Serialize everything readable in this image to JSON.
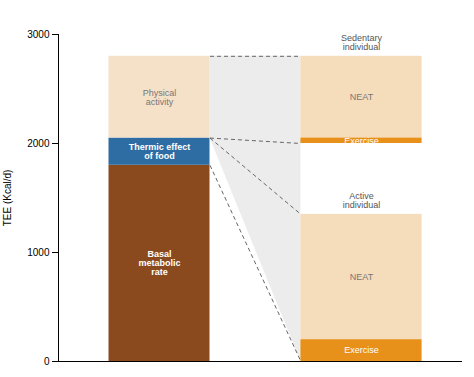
{
  "chart_data": {
    "type": "bar",
    "ylabel": "TEE (Kcal/d)",
    "ylim": [
      0,
      3000
    ],
    "yticks": [
      0,
      1000,
      2000,
      3000
    ],
    "tick_labels": "y",
    "categories": [
      null,
      null
    ],
    "bars": [
      {
        "groups": [
          {
            "segments": [
              {
                "name": "Basal\nmetabolic\nrate",
                "bottom": 0,
                "top": 1800,
                "color": "#8B4A1E"
              },
              {
                "name": "Thermic effect\nof food",
                "bottom": 1800,
                "top": 2050,
                "color": "#2E6DA4"
              },
              {
                "name": "Physical\nactivity",
                "bottom": 2050,
                "top": 2800,
                "color": "#F5E0C8"
              }
            ]
          }
        ]
      },
      {
        "groups": [
          {
            "title": "Sedentary\nindividual",
            "segments": [
              {
                "name": "NEAT",
                "bottom": 2050,
                "top": 2800,
                "color": "#F5DCBB"
              },
              {
                "name": "Exercise",
                "bottom": 2000,
                "top": 2050,
                "color": "#E8911A"
              }
            ]
          },
          {
            "title": "Active\nindividual",
            "segments": [
              {
                "name": "NEAT",
                "bottom": 200,
                "top": 1350,
                "color": "#F5DCBB"
              },
              {
                "name": "Exercise",
                "bottom": 0,
                "top": 200,
                "color": "#E8911A"
              }
            ]
          }
        ]
      }
    ],
    "shade": {
      "color": "#DCDCDC",
      "from": [
        2050,
        2800
      ],
      "to": [
        0,
        2800
      ]
    },
    "connectors": {
      "color": "#666666",
      "line_style": "dashed",
      "pairs": [
        [
          2800,
          2800
        ],
        [
          2050,
          2000
        ],
        [
          2050,
          1350
        ],
        [
          1800,
          0
        ]
      ]
    }
  }
}
